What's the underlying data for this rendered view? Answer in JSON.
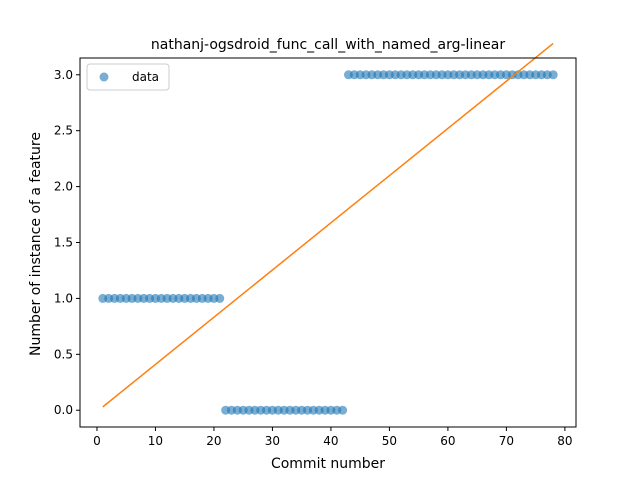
{
  "chart_data": {
    "type": "scatter",
    "title": "nathanj-ogsdroid_func_call_with_named_arg-linear",
    "xlabel": "Commit number",
    "ylabel": "Number of instance of a feature",
    "xlim": [
      -2.9,
      81.9
    ],
    "ylim": [
      -0.15,
      3.15
    ],
    "x_ticks": [
      0,
      10,
      20,
      30,
      40,
      50,
      60,
      70,
      80
    ],
    "x_tick_labels": [
      "0",
      "10",
      "20",
      "30",
      "40",
      "50",
      "60",
      "70",
      "80"
    ],
    "y_ticks": [
      0.0,
      0.5,
      1.0,
      1.5,
      2.0,
      2.5,
      3.0
    ],
    "y_tick_labels": [
      "0.0",
      "0.5",
      "1.0",
      "1.5",
      "2.0",
      "2.5",
      "3.0"
    ],
    "grid": false,
    "legend_position": "top-left",
    "series": [
      {
        "name": "data",
        "kind": "scatter",
        "color": "#1f77b4",
        "x": [
          1,
          2,
          3,
          4,
          5,
          6,
          7,
          8,
          9,
          10,
          11,
          12,
          13,
          14,
          15,
          16,
          17,
          18,
          19,
          20,
          21,
          22,
          23,
          24,
          25,
          26,
          27,
          28,
          29,
          30,
          31,
          32,
          33,
          34,
          35,
          36,
          37,
          38,
          39,
          40,
          41,
          42,
          43,
          44,
          45,
          46,
          47,
          48,
          49,
          50,
          51,
          52,
          53,
          54,
          55,
          56,
          57,
          58,
          59,
          60,
          61,
          62,
          63,
          64,
          65,
          66,
          67,
          68,
          69,
          70,
          71,
          72,
          73,
          74,
          75,
          76,
          77,
          78
        ],
        "y": [
          1,
          1,
          1,
          1,
          1,
          1,
          1,
          1,
          1,
          1,
          1,
          1,
          1,
          1,
          1,
          1,
          1,
          1,
          1,
          1,
          1,
          0,
          0,
          0,
          0,
          0,
          0,
          0,
          0,
          0,
          0,
          0,
          0,
          0,
          0,
          0,
          0,
          0,
          0,
          0,
          0,
          0,
          3,
          3,
          3,
          3,
          3,
          3,
          3,
          3,
          3,
          3,
          3,
          3,
          3,
          3,
          3,
          3,
          3,
          3,
          3,
          3,
          3,
          3,
          3,
          3,
          3,
          3,
          3,
          3,
          3,
          3,
          3,
          3,
          3,
          3,
          3,
          3
        ]
      },
      {
        "kind": "line",
        "color": "#ff7f0e",
        "x": [
          1,
          78
        ],
        "y": [
          0.03,
          3.28
        ]
      }
    ]
  }
}
